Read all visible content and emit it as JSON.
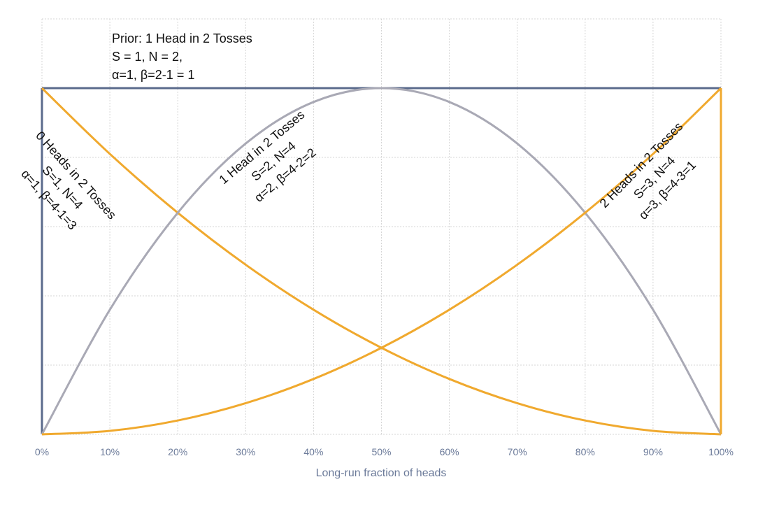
{
  "chart_data": {
    "type": "line",
    "title": "",
    "xlabel": "Long-run fraction of heads",
    "ylabel": "",
    "xlim": [
      0,
      1
    ],
    "ylim": [
      0,
      1.2
    ],
    "grid": true,
    "legend": "none",
    "x_tick_labels": [
      "0%",
      "10%",
      "20%",
      "30%",
      "40%",
      "50%",
      "60%",
      "70%",
      "80%",
      "90%",
      "100%"
    ],
    "series": [
      {
        "color": "#5b6b8c",
        "x": [
          0,
          0,
          0.1,
          0.2,
          0.3,
          0.4,
          0.5,
          0.6,
          0.7,
          0.8,
          0.9,
          1,
          1
        ],
        "y": [
          0,
          1,
          1,
          1,
          1,
          1,
          1,
          1,
          1,
          1,
          1,
          1,
          0
        ]
      },
      {
        "color": "#f0a92e",
        "x": [
          0,
          0.1,
          0.2,
          0.3,
          0.4,
          0.5,
          0.6,
          0.7,
          0.8,
          0.9,
          1
        ],
        "y": [
          1,
          0.81,
          0.64,
          0.49,
          0.36,
          0.25,
          0.16,
          0.09,
          0.04,
          0.01,
          0
        ]
      },
      {
        "color": "#a9a9b5",
        "x": [
          0,
          0.1,
          0.2,
          0.3,
          0.4,
          0.5,
          0.6,
          0.7,
          0.8,
          0.9,
          1
        ],
        "y": [
          0,
          0.36,
          0.64,
          0.84,
          0.96,
          1,
          0.96,
          0.84,
          0.64,
          0.36,
          0
        ]
      },
      {
        "color": "#f0a92e",
        "x": [
          0,
          0.1,
          0.2,
          0.3,
          0.4,
          0.5,
          0.6,
          0.7,
          0.8,
          0.9,
          1,
          1
        ],
        "y": [
          0,
          0.01,
          0.04,
          0.09,
          0.16,
          0.25,
          0.36,
          0.49,
          0.64,
          0.81,
          1,
          0
        ]
      }
    ],
    "annotations": {
      "prior": [
        "Prior: 1 Head in 2 Tosses",
        "S = 1, N = 2,",
        "α=1, β=2-1 = 1"
      ],
      "zero_heads": [
        "0 Heads in 2 Tosses",
        "S=1, N=4",
        "α=1, β=4-1=3"
      ],
      "one_head": [
        "1 Head in 2 Tosses",
        "S=2, N=4",
        "α=2, β=4-2=2"
      ],
      "two_heads": [
        "2 Heads in 2 Tosses",
        "S=3, N=4",
        "α=3, β=4-3=1"
      ]
    }
  }
}
